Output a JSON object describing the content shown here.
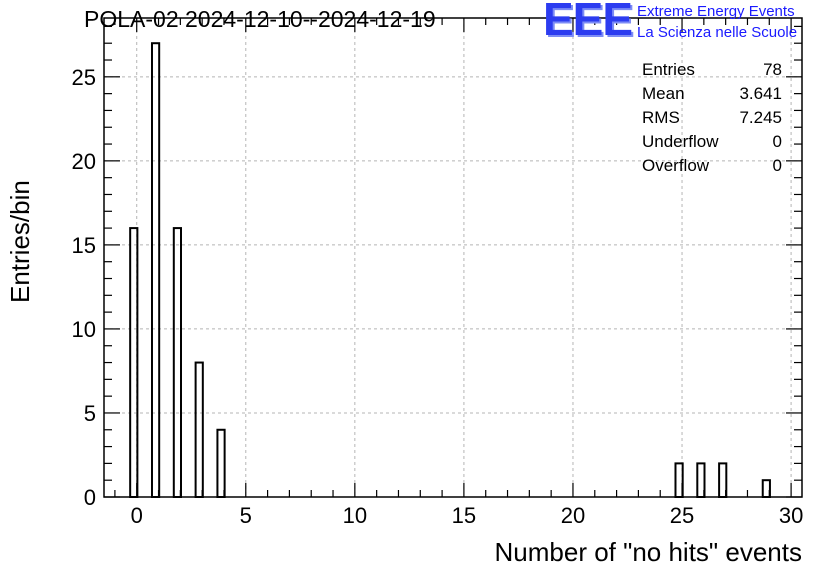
{
  "chart_data": {
    "type": "bar",
    "title": "POLA-02 2024-12-10--2024-12-19",
    "xlabel": "Number of \"no hits\" events",
    "ylabel": "Entries/bin",
    "xlim": [
      -1.5,
      30.5
    ],
    "ylim": [
      0,
      28.5
    ],
    "x_ticks": [
      0,
      5,
      10,
      15,
      20,
      25,
      30
    ],
    "y_ticks": [
      0,
      5,
      10,
      15,
      20,
      25
    ],
    "grid": true,
    "bin_width": 0.3,
    "bins": [
      {
        "x": 0,
        "value": 16
      },
      {
        "x": 1,
        "value": 27
      },
      {
        "x": 2,
        "value": 16
      },
      {
        "x": 3,
        "value": 8
      },
      {
        "x": 4,
        "value": 4
      },
      {
        "x": 25,
        "value": 2
      },
      {
        "x": 26,
        "value": 2
      },
      {
        "x": 27,
        "value": 2
      },
      {
        "x": 29,
        "value": 1
      }
    ]
  },
  "stats": [
    {
      "label": "Entries",
      "value": "78"
    },
    {
      "label": "Mean",
      "value": "3.641"
    },
    {
      "label": "RMS",
      "value": "7.245"
    },
    {
      "label": "Underflow",
      "value": "0"
    },
    {
      "label": "Overflow",
      "value": "0"
    }
  ],
  "logo": {
    "mark": "EEE",
    "line1": "Extreme Energy Events",
    "line2": "La Scienza nelle Scuole"
  }
}
